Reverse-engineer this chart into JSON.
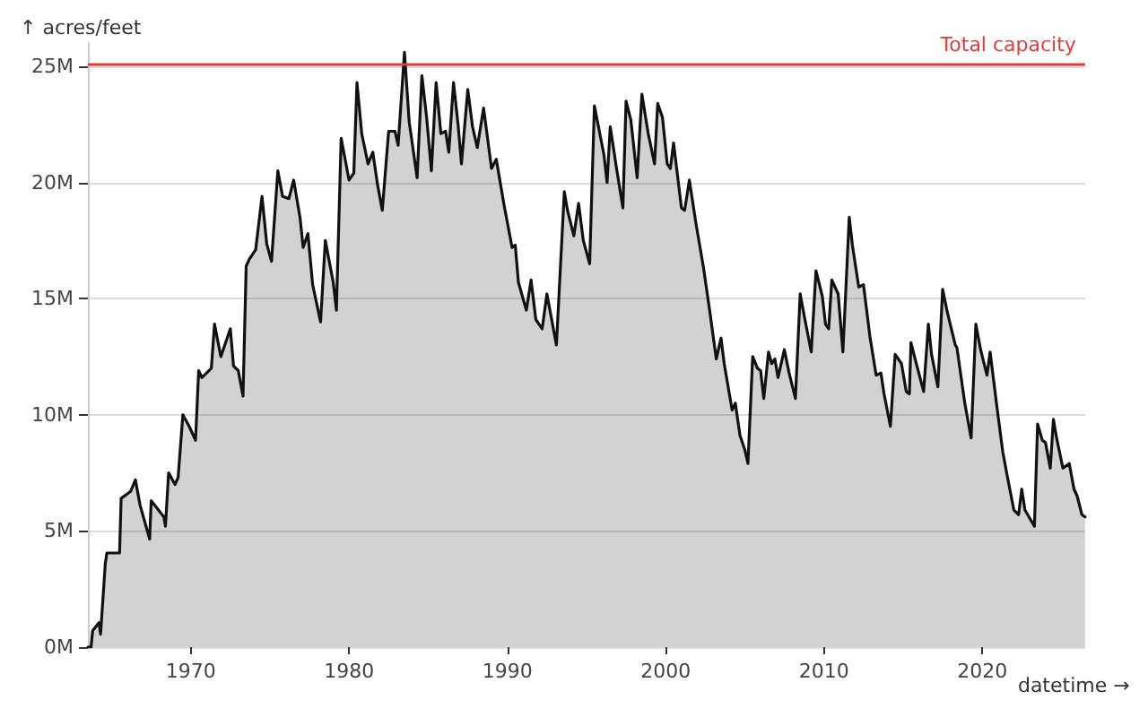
{
  "chart_data": {
    "type": "area",
    "xlabel": "datetime →",
    "ylabel": "↑ acres/feet",
    "x": [
      1963.5,
      1963.7,
      1963.8,
      1964.2,
      1964.3,
      1964.6,
      1964.7,
      1965.5,
      1965.6,
      1966.2,
      1966.5,
      1966.8,
      1967.4,
      1967.5,
      1968.3,
      1968.4,
      1968.6,
      1969.0,
      1969.2,
      1969.5,
      1969.9,
      1970.3,
      1970.5,
      1970.7,
      1971.3,
      1971.5,
      1971.9,
      1972.5,
      1972.7,
      1973.0,
      1973.3,
      1973.5,
      1973.7,
      1974.1,
      1974.5,
      1974.8,
      1975.1,
      1975.5,
      1975.8,
      1976.2,
      1976.5,
      1976.9,
      1977.1,
      1977.4,
      1977.7,
      1978.2,
      1978.5,
      1979.0,
      1979.2,
      1979.5,
      1980.0,
      1980.3,
      1980.5,
      1980.8,
      1981.2,
      1981.5,
      1981.8,
      1982.1,
      1982.5,
      1982.9,
      1983.1,
      1983.5,
      1983.8,
      1984.3,
      1984.6,
      1984.9,
      1985.2,
      1985.5,
      1985.8,
      1986.1,
      1986.3,
      1986.6,
      1986.9,
      1987.1,
      1987.5,
      1987.8,
      1988.1,
      1988.5,
      1989.0,
      1989.3,
      1989.8,
      1990.3,
      1990.5,
      1990.7,
      1991.2,
      1991.5,
      1991.8,
      1992.2,
      1992.5,
      1993.1,
      1993.6,
      1993.8,
      1994.2,
      1994.5,
      1994.8,
      1995.2,
      1995.5,
      1996.1,
      1996.3,
      1996.5,
      1996.9,
      1997.3,
      1997.5,
      1997.8,
      1998.2,
      1998.5,
      1998.9,
      1999.3,
      1999.5,
      1999.8,
      2000.1,
      2000.3,
      2000.5,
      2001.0,
      2001.2,
      2001.5,
      2001.9,
      2002.4,
      2002.8,
      2003.2,
      2003.5,
      2003.7,
      2004.2,
      2004.4,
      2004.7,
      2005.0,
      2005.2,
      2005.5,
      2005.8,
      2006.0,
      2006.2,
      2006.5,
      2006.7,
      2006.9,
      2007.1,
      2007.5,
      2007.8,
      2008.2,
      2008.5,
      2008.8,
      2009.2,
      2009.5,
      2009.9,
      2010.1,
      2010.3,
      2010.5,
      2010.9,
      2011.2,
      2011.6,
      2011.8,
      2012.2,
      2012.5,
      2012.9,
      2013.3,
      2013.6,
      2013.8,
      2014.2,
      2014.5,
      2014.9,
      2015.2,
      2015.4,
      2015.5,
      2015.8,
      2016.3,
      2016.6,
      2016.8,
      2017.2,
      2017.5,
      2017.8,
      2018.3,
      2018.4,
      2018.9,
      2019.3,
      2019.6,
      2019.9,
      2020.3,
      2020.5,
      2020.9,
      2021.3,
      2021.6,
      2022.0,
      2022.3,
      2022.5,
      2022.7,
      2023.3,
      2023.5,
      2023.8,
      2024.0,
      2024.3,
      2024.5,
      2024.7,
      2025.1,
      2025.5,
      2025.8,
      2026.0,
      2026.3,
      2026.5
    ],
    "series": [
      {
        "color": "#111111",
        "values": [
          0,
          0,
          0.7,
          1.05,
          0.55,
          3.6,
          4.05,
          4.05,
          6.4,
          6.7,
          7.2,
          6.1,
          4.65,
          6.3,
          5.6,
          5.2,
          7.5,
          7.0,
          7.3,
          10.0,
          9.5,
          8.9,
          11.9,
          11.6,
          12.0,
          13.9,
          12.5,
          13.7,
          12.1,
          11.9,
          10.8,
          16.4,
          16.7,
          17.1,
          19.4,
          17.35,
          16.6,
          20.5,
          19.4,
          19.3,
          20.1,
          18.5,
          17.2,
          17.8,
          15.6,
          14.0,
          17.5,
          15.7,
          14.5,
          21.9,
          20.1,
          20.4,
          24.3,
          22.1,
          20.8,
          21.3,
          19.9,
          18.8,
          22.2,
          22.2,
          21.6,
          25.6,
          22.6,
          20.2,
          24.6,
          22.8,
          20.5,
          24.3,
          22.1,
          22.2,
          21.3,
          24.3,
          22.4,
          20.8,
          24.0,
          22.4,
          21.5,
          23.2,
          20.6,
          21.0,
          19.0,
          17.2,
          17.3,
          15.7,
          14.5,
          15.8,
          14.1,
          13.7,
          15.2,
          13.0,
          19.6,
          18.8,
          17.7,
          19.1,
          17.5,
          16.5,
          23.3,
          21.2,
          20.0,
          22.4,
          20.6,
          18.9,
          23.5,
          22.7,
          20.2,
          23.8,
          22.1,
          20.8,
          23.4,
          22.8,
          20.8,
          20.6,
          21.7,
          18.9,
          18.8,
          20.1,
          18.3,
          16.3,
          14.4,
          12.4,
          13.3,
          12.2,
          10.2,
          10.5,
          9.1,
          8.5,
          7.9,
          12.5,
          12.0,
          11.9,
          10.7,
          12.7,
          12.2,
          12.4,
          11.6,
          12.8,
          11.8,
          10.7,
          15.2,
          14.1,
          12.7,
          16.2,
          15.1,
          13.9,
          13.7,
          15.8,
          15.2,
          12.7,
          18.5,
          17.3,
          15.5,
          15.6,
          13.4,
          11.7,
          11.8,
          10.9,
          9.5,
          12.6,
          12.2,
          11.0,
          10.9,
          13.1,
          12.3,
          11.0,
          13.9,
          12.6,
          11.2,
          15.4,
          14.4,
          13.0,
          12.9,
          10.5,
          9.0,
          13.9,
          12.8,
          11.7,
          12.7,
          10.5,
          8.4,
          7.3,
          5.9,
          5.7,
          6.8,
          5.9,
          5.2,
          9.6,
          8.9,
          8.8,
          7.7,
          9.8,
          9.0,
          7.7,
          7.9,
          6.8,
          6.5,
          5.7,
          5.6
        ]
      }
    ],
    "xlim": [
      1963.5,
      2026.5
    ],
    "xticks": [
      1970,
      1980,
      1990,
      2000,
      2010,
      2020
    ],
    "ylim": [
      0,
      26
    ],
    "yticks": [
      {
        "value": 0,
        "label": "0M"
      },
      {
        "value": 5,
        "label": "5M"
      },
      {
        "value": 10,
        "label": "10M"
      },
      {
        "value": 15,
        "label": "15M"
      },
      {
        "value": 20,
        "label": "20M"
      },
      {
        "value": 25,
        "label": "25M"
      }
    ],
    "grid": "y",
    "marker": "none",
    "line_style": "solid",
    "ref_lines": [
      {
        "axis": "y",
        "value": 25.1,
        "label": "Total capacity",
        "color": "#e03a3a"
      }
    ]
  }
}
